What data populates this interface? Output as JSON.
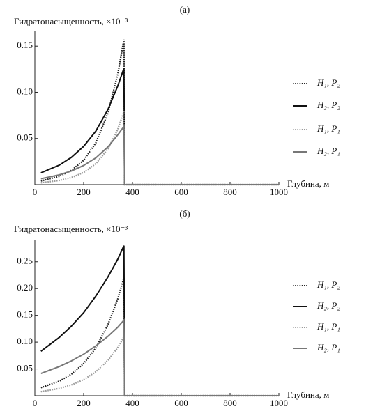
{
  "chart_data": [
    {
      "type": "line",
      "title": "(а)",
      "ylabel": "Гидратонасыщенность, ×10⁻³",
      "xlabel": "Глубина, м",
      "x": [
        25,
        100,
        150,
        200,
        250,
        300,
        340,
        365,
        368,
        1000
      ],
      "xlim": [
        0,
        1000
      ],
      "xticks": [
        0,
        200,
        400,
        600,
        800,
        1000
      ],
      "ylim": [
        0,
        0.166
      ],
      "yticks": [
        0.05,
        {
          "value": 0.1,
          "label": "0.10"
        },
        0.15
      ],
      "series": [
        {
          "name": "H₁, P₂",
          "color": "#222222",
          "style": "dotted",
          "values": [
            0.004,
            0.009,
            0.0154,
            0.0264,
            0.0453,
            0.0777,
            0.12,
            0.157,
            0,
            0
          ]
        },
        {
          "name": "H₂, P₂",
          "color": "#111111",
          "style": "solid",
          "values": [
            0.0128,
            0.0211,
            0.0296,
            0.0415,
            0.058,
            0.0817,
            0.107,
            0.126,
            0,
            0
          ]
        },
        {
          "name": "H₁, P₁",
          "color": "#999999",
          "style": "dotted",
          "values": [
            0.002,
            0.0045,
            0.0077,
            0.0132,
            0.0227,
            0.0389,
            0.06,
            0.079,
            0,
            0
          ]
        },
        {
          "name": "H₂, P₁",
          "color": "#777777",
          "style": "solid",
          "values": [
            0.0064,
            0.0106,
            0.0148,
            0.0208,
            0.029,
            0.041,
            0.054,
            0.063,
            0,
            0
          ]
        }
      ]
    },
    {
      "type": "line",
      "title": "(б)",
      "ylabel": "Гидратонасыщенность, ×10⁻³",
      "xlabel": "Глубина, м",
      "x": [
        25,
        100,
        150,
        200,
        250,
        300,
        340,
        365,
        368,
        1000
      ],
      "xlim": [
        0,
        1000
      ],
      "xticks": [
        0,
        200,
        400,
        600,
        800,
        1000
      ],
      "ylim": [
        0,
        0.29
      ],
      "yticks": [
        0.05,
        {
          "value": 0.1,
          "label": "0.10"
        },
        0.15,
        {
          "value": 0.2,
          "label": "0.20"
        },
        0.25
      ],
      "series": [
        {
          "name": "H₁, P₂",
          "color": "#222222",
          "style": "dotted",
          "values": [
            0.015,
            0.0271,
            0.0403,
            0.06,
            0.0892,
            0.133,
            0.181,
            0.22,
            0,
            0
          ]
        },
        {
          "name": "H₂, P₂",
          "color": "#111111",
          "style": "solid",
          "values": [
            0.083,
            0.1088,
            0.13,
            0.155,
            0.186,
            0.222,
            0.255,
            0.28,
            0,
            0
          ]
        },
        {
          "name": "H₁, P₁",
          "color": "#999999",
          "style": "dotted",
          "values": [
            0.0075,
            0.0136,
            0.0202,
            0.03,
            0.0446,
            0.0664,
            0.09,
            0.11,
            0,
            0
          ]
        },
        {
          "name": "H₂, P₁",
          "color": "#777777",
          "style": "solid",
          "values": [
            0.0415,
            0.0544,
            0.065,
            0.0776,
            0.093,
            0.111,
            0.128,
            0.141,
            0,
            0
          ]
        }
      ]
    }
  ]
}
